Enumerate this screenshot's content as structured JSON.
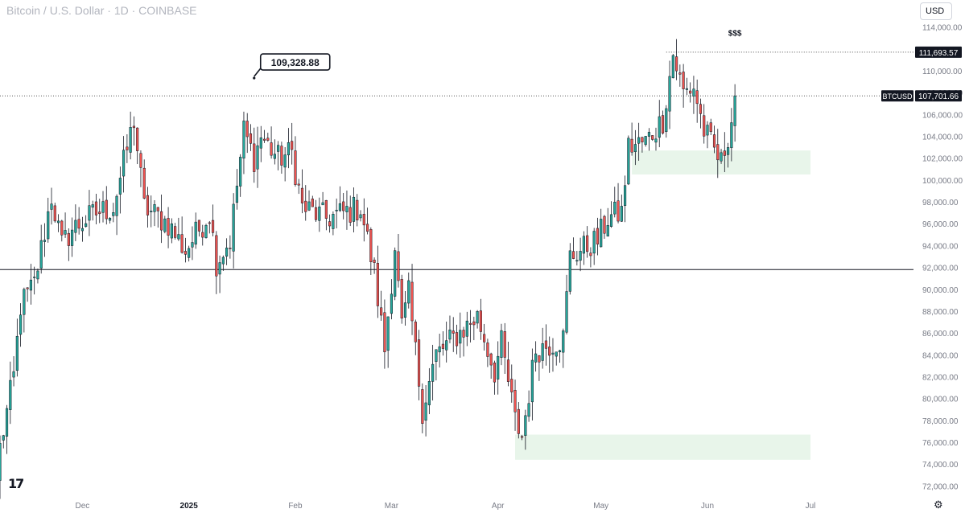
{
  "header": {
    "title": "Bitcoin / U.S. Dollar · 1D · COINBASE",
    "currency": "USD"
  },
  "icons": {
    "logo": "tradingview-logo-icon",
    "settings": "gear-icon"
  },
  "logo_text": "17",
  "colors": {
    "up": "#26a69a",
    "down": "#ef5350",
    "zone": "#e8f5ea",
    "line": "#131722",
    "axis_text": "#787b86"
  },
  "chart_data": {
    "type": "candlestick",
    "symbol": "BTCUSD",
    "yaxis": {
      "ticks": [
        "114,000.00",
        "112,000.00",
        "110,000.00",
        "108,000.00",
        "106,000.00",
        "104,000.00",
        "102,000.00",
        "100,000.00",
        "98,000.00",
        "96,000.00",
        "94,000.00",
        "92,000.00",
        "90,000.00",
        "88,000.00",
        "86,000.00",
        "84,000.00",
        "82,000.00",
        "80,000.00",
        "78,000.00",
        "76,000.00",
        "74,000.00",
        "72,000.00"
      ],
      "ylim": [
        71000,
        115000
      ]
    },
    "xaxis": {
      "labels": [
        "Dec",
        "2025",
        "Feb",
        "Mar",
        "Apr",
        "May",
        "Jun",
        "Jul"
      ],
      "dates": [
        "2024-12-01",
        "2025-01-01",
        "2025-02-01",
        "2025-03-01",
        "2025-04-01",
        "2025-05-01",
        "2025-06-01",
        "2025-07-01"
      ],
      "xlim": [
        "2024-11-07",
        "2025-07-31"
      ]
    },
    "annotations": {
      "callout": {
        "text": "109,328.88",
        "date": "2025-01-20",
        "price": 109328.88
      },
      "top_label": "$$$",
      "high_label": "111,693.57",
      "high_price": 111693.57,
      "current_symbol": "BTCUSD",
      "current_label": "107,701.66",
      "current_price": 107701.66,
      "support_price": 91800
    },
    "zones": [
      {
        "start": "2025-05-10",
        "end": "2025-07-01",
        "low": 100500,
        "high": 102700
      },
      {
        "start": "2025-04-06",
        "end": "2025-07-01",
        "low": 74400,
        "high": 76700
      }
    ],
    "anchors": [
      [
        "2024-11-07",
        75500
      ],
      [
        "2024-11-11",
        82000
      ],
      [
        "2024-11-13",
        88500
      ],
      [
        "2024-11-17",
        90500
      ],
      [
        "2024-11-22",
        98500
      ],
      [
        "2024-11-25",
        94000
      ],
      [
        "2024-11-28",
        95500
      ],
      [
        "2024-12-05",
        97000
      ],
      [
        "2024-12-10",
        97500
      ],
      [
        "2024-12-16",
        105500
      ],
      [
        "2024-12-19",
        97500
      ],
      [
        "2024-12-26",
        96000
      ],
      [
        "2024-12-31",
        93500
      ],
      [
        "2025-01-07",
        97000
      ],
      [
        "2025-01-09",
        92500
      ],
      [
        "2025-01-13",
        94500
      ],
      [
        "2025-01-17",
        104500
      ],
      [
        "2025-01-20",
        102000
      ],
      [
        "2025-01-22",
        104000
      ],
      [
        "2025-01-27",
        102000
      ],
      [
        "2025-01-31",
        102500
      ],
      [
        "2025-02-03",
        97500
      ],
      [
        "2025-02-10",
        96500
      ],
      [
        "2025-02-20",
        97500
      ],
      [
        "2025-02-24",
        91500
      ],
      [
        "2025-02-27",
        84500
      ],
      [
        "2025-03-02",
        94000
      ],
      [
        "2025-03-04",
        86500
      ],
      [
        "2025-03-06",
        89500
      ],
      [
        "2025-03-10",
        79000
      ],
      [
        "2025-03-14",
        84000
      ],
      [
        "2025-03-19",
        85500
      ],
      [
        "2025-03-26",
        87500
      ],
      [
        "2025-03-31",
        82500
      ],
      [
        "2025-04-02",
        85000
      ],
      [
        "2025-04-06",
        78000
      ],
      [
        "2025-04-08",
        76500
      ],
      [
        "2025-04-12",
        84500
      ],
      [
        "2025-04-20",
        85500
      ],
      [
        "2025-04-22",
        93000
      ],
      [
        "2025-04-30",
        94500
      ],
      [
        "2025-05-03",
        96500
      ],
      [
        "2025-05-07",
        97000
      ],
      [
        "2025-05-09",
        103000
      ],
      [
        "2025-05-14",
        103500
      ],
      [
        "2025-05-19",
        105500
      ],
      [
        "2025-05-22",
        111500
      ],
      [
        "2025-05-25",
        108000
      ],
      [
        "2025-05-28",
        108500
      ],
      [
        "2025-05-31",
        104500
      ],
      [
        "2025-06-05",
        101500
      ],
      [
        "2025-06-08",
        105500
      ],
      [
        "2025-06-09",
        107700
      ]
    ]
  }
}
